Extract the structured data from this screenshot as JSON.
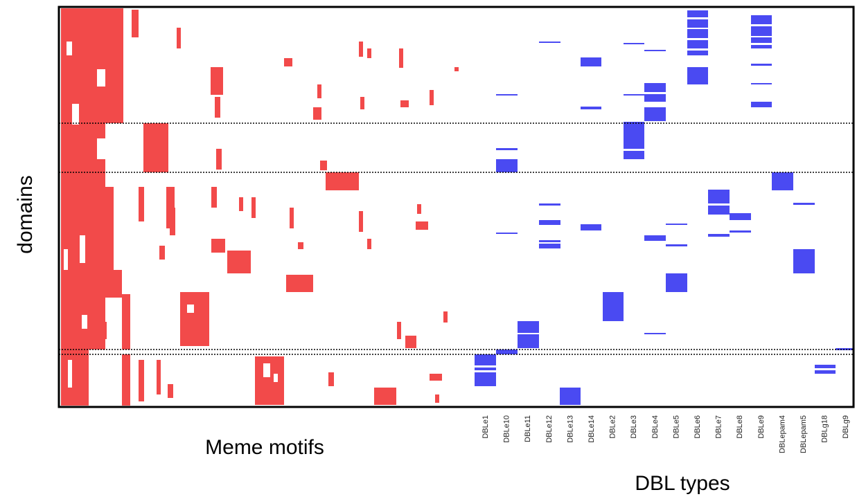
{
  "axis_labels": {
    "y": "domains",
    "x_left": "Meme motifs",
    "x_right": "DBL types"
  },
  "dbl_types": [
    "DBLe1",
    "DBLe10",
    "DBLe11",
    "DBLe12",
    "DBLe13",
    "DBLe14",
    "DBLe2",
    "DBLe3",
    "DBLe4",
    "DBLe5",
    "DBLe6",
    "DBLe7",
    "DBLe8",
    "DBLe9",
    "DBLepam4",
    "DBLepam5",
    "DBLg18",
    "DBLg9"
  ]
}
